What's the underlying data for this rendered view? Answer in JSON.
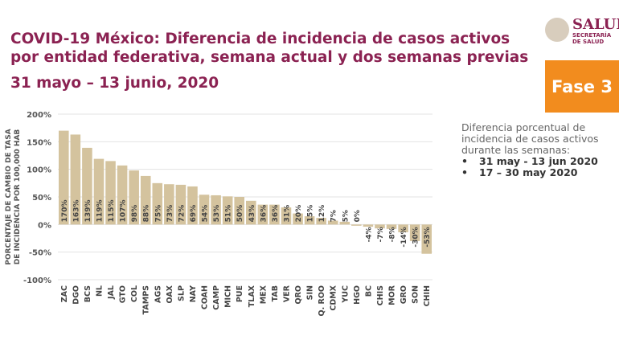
{
  "header": {
    "title": "COVID-19 México: Diferencia de incidencia de casos activos por entidad federativa, semana actual y dos semanas previas",
    "subtitle": "31 mayo – 13 junio, 2020",
    "logo_text": "SALUD",
    "logo_sub": "SECRETARÍA DE SALUD",
    "phase_badge": "Fase 3"
  },
  "legend": {
    "text": "Diferencia porcentual de incidencia de  casos activos durante las semanas:",
    "items": [
      "31 may - 13 jun 2020",
      "17 – 30 may 2020"
    ]
  },
  "colors": {
    "bar": "#d4c39e",
    "title": "#8b2252",
    "badge": "#f28c1e"
  },
  "chart_data": {
    "type": "bar",
    "title": "",
    "ylabel": "PORCENTAJE DE CAMBIO DE TASA DE INCIDENCIA POR 100,000 HAB",
    "ylabel_lines": [
      "PORCENTAJE DE CAMBIO DE TASA",
      "DE INCIDENCIA  POR 100,000 HAB"
    ],
    "ylim": [
      -100,
      200
    ],
    "yticks": [
      "-100%",
      "-50%",
      "0%",
      "50%",
      "100%",
      "150%",
      "200%"
    ],
    "ytick_values": [
      -100,
      -50,
      0,
      50,
      100,
      150,
      200
    ],
    "grid": true,
    "categories": [
      "ZAC",
      "DGO",
      "BCS",
      "NL",
      "JAL",
      "GTO",
      "COL",
      "TAMPS",
      "AGS",
      "OAX",
      "SLP",
      "NAY",
      "COAH",
      "CAMP",
      "MICH",
      "PUE",
      "TLAX",
      "MEX",
      "TAB",
      "VER",
      "QRO",
      "SIN",
      "Q. ROO",
      "CDMX",
      "YUC",
      "HGO",
      "BC",
      "CHIS",
      "MOR",
      "GRO",
      "SON",
      "CHIH"
    ],
    "values": [
      170,
      163,
      139,
      119,
      115,
      107,
      98,
      88,
      75,
      73,
      72,
      69,
      54,
      53,
      51,
      50,
      43,
      36,
      36,
      31,
      20,
      15,
      12,
      7,
      5,
      0,
      -4,
      -7,
      -8,
      -14,
      -30,
      -53
    ],
    "labels": [
      "170%",
      "163%",
      "139%",
      "119%",
      "115%",
      "107%",
      "98%",
      "88%",
      "75%",
      "73%",
      "72%",
      "69%",
      "54%",
      "53%",
      "51%",
      "50%",
      "43%",
      "36%",
      "36%",
      "31%",
      "20%",
      "15%",
      "12%",
      "7%",
      "5%",
      "0%",
      "-4%",
      "-7%",
      "-8%",
      "-14%",
      "-30%",
      "-53%"
    ]
  }
}
